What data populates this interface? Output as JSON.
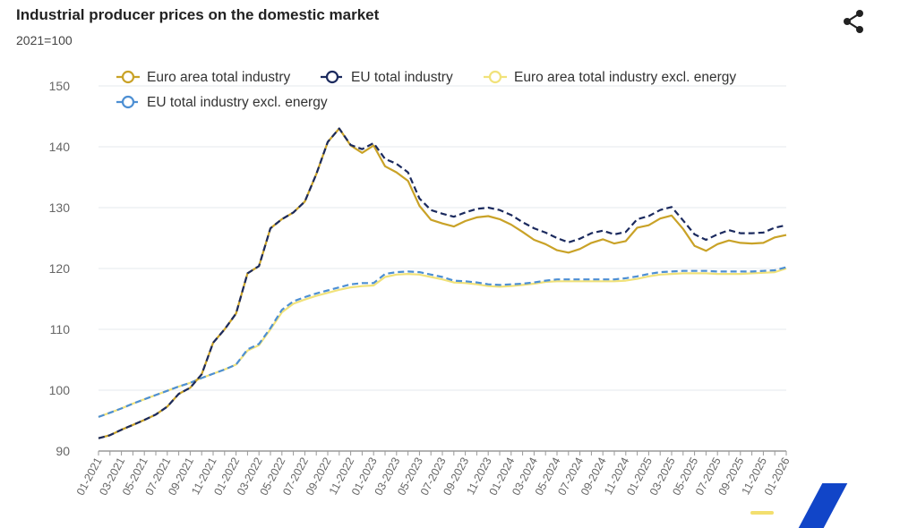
{
  "header": {
    "title": "Industrial producer prices on the domestic market",
    "subtitle": "2021=100",
    "share_icon": "share-icon"
  },
  "colors": {
    "grid": "#e4e8ee",
    "axis": "#999999"
  },
  "chart_data": {
    "type": "line",
    "title": "Industrial producer prices on the domestic market",
    "subtitle": "2021=100",
    "ylim": [
      90,
      150
    ],
    "yticks": [
      90,
      100,
      110,
      120,
      130,
      140,
      150
    ],
    "grid": true,
    "legend_placement": "top",
    "x": [
      "01-2021",
      "02-2021",
      "03-2021",
      "04-2021",
      "05-2021",
      "06-2021",
      "07-2021",
      "08-2021",
      "09-2021",
      "10-2021",
      "11-2021",
      "12-2021",
      "01-2022",
      "02-2022",
      "03-2022",
      "04-2022",
      "05-2022",
      "06-2022",
      "07-2022",
      "08-2022",
      "09-2022",
      "10-2022",
      "11-2022",
      "12-2022",
      "01-2023",
      "02-2023",
      "03-2023",
      "04-2023",
      "05-2023",
      "06-2023",
      "07-2023",
      "08-2023",
      "09-2023",
      "10-2023",
      "11-2023",
      "12-2023",
      "01-2024",
      "02-2024",
      "03-2024",
      "04-2024",
      "05-2024",
      "06-2024",
      "07-2024",
      "08-2024",
      "09-2024",
      "10-2024",
      "11-2024",
      "12-2024",
      "01-2025",
      "02-2025",
      "03-2025",
      "04-2025",
      "05-2025",
      "06-2025",
      "07-2025",
      "08-2025",
      "09-2025",
      "10-2025",
      "11-2025",
      "12-2025",
      "01-2026"
    ],
    "xtick_labels": [
      "01-2021",
      "03-2021",
      "05-2021",
      "07-2021",
      "09-2021",
      "11-2021",
      "01-2022",
      "03-2022",
      "05-2022",
      "07-2022",
      "09-2022",
      "11-2022",
      "01-2023",
      "03-2023",
      "05-2023",
      "07-2023",
      "09-2023",
      "11-2023",
      "01-2024",
      "03-2024",
      "05-2024",
      "07-2024",
      "09-2024",
      "11-2024",
      "01-2025",
      "03-2025",
      "05-2025",
      "07-2025",
      "09-2025",
      "11-2025",
      "01-2026"
    ],
    "series": [
      {
        "name": "Euro area total industry",
        "color": "#c9a227",
        "style": "solid",
        "values": [
          92.1,
          92.6,
          93.5,
          94.3,
          95.1,
          96.0,
          97.3,
          99.4,
          100.4,
          102.6,
          107.8,
          110.0,
          112.6,
          119.2,
          120.4,
          126.6,
          128.1,
          129.2,
          131.0,
          135.5,
          140.8,
          143.0,
          140.2,
          139.0,
          140.2,
          136.8,
          135.8,
          134.4,
          130.3,
          128.0,
          127.4,
          126.9,
          127.8,
          128.4,
          128.6,
          128.1,
          127.2,
          126.0,
          124.7,
          124.0,
          123.0,
          122.6,
          123.2,
          124.2,
          124.8,
          124.1,
          124.5,
          126.7,
          127.1,
          128.2,
          128.7,
          126.5,
          123.7,
          122.9,
          124.0,
          124.6,
          124.2,
          124.1,
          124.2,
          125.1,
          125.5
        ]
      },
      {
        "name": "EU total industry",
        "color": "#1b2a5e",
        "style": "dashed",
        "values": [
          92.1,
          92.6,
          93.5,
          94.3,
          95.1,
          96.0,
          97.3,
          99.4,
          100.4,
          102.6,
          107.8,
          110.0,
          112.6,
          119.2,
          120.4,
          126.6,
          128.1,
          129.2,
          131.0,
          135.5,
          140.8,
          143.0,
          140.3,
          139.6,
          140.6,
          138.0,
          137.2,
          135.8,
          131.5,
          129.6,
          129.0,
          128.5,
          129.2,
          129.8,
          130.0,
          129.6,
          128.8,
          127.6,
          126.6,
          125.9,
          125.0,
          124.3,
          124.9,
          125.8,
          126.2,
          125.6,
          126.0,
          128.1,
          128.6,
          129.6,
          130.1,
          127.9,
          125.6,
          124.7,
          125.6,
          126.3,
          125.8,
          125.8,
          125.9,
          126.7,
          127.1
        ]
      },
      {
        "name": "Euro area total industry excl. energy",
        "color": "#f1e27a",
        "style": "solid",
        "values": [
          95.6,
          96.3,
          97.0,
          97.8,
          98.5,
          99.2,
          99.9,
          100.6,
          101.2,
          102.0,
          102.7,
          103.4,
          104.2,
          106.5,
          107.4,
          110.0,
          112.8,
          114.2,
          114.9,
          115.5,
          116.0,
          116.5,
          116.9,
          117.1,
          117.2,
          118.6,
          119.0,
          119.1,
          119.0,
          118.6,
          118.2,
          117.7,
          117.6,
          117.4,
          117.1,
          117.0,
          117.1,
          117.3,
          117.5,
          117.8,
          117.9,
          117.9,
          117.9,
          117.9,
          117.9,
          117.9,
          118.0,
          118.3,
          118.7,
          119.0,
          119.1,
          119.2,
          119.2,
          119.2,
          119.1,
          119.1,
          119.1,
          119.2,
          119.3,
          119.4,
          120.0
        ]
      },
      {
        "name": "EU total industry excl. energy",
        "color": "#4d8fd3",
        "style": "dashed",
        "values": [
          95.6,
          96.3,
          97.0,
          97.8,
          98.5,
          99.2,
          99.9,
          100.6,
          101.2,
          102.0,
          102.7,
          103.4,
          104.2,
          106.7,
          107.6,
          110.2,
          113.2,
          114.6,
          115.3,
          115.9,
          116.4,
          116.9,
          117.4,
          117.6,
          117.6,
          119.1,
          119.4,
          119.5,
          119.4,
          119.0,
          118.6,
          118.0,
          117.9,
          117.7,
          117.4,
          117.3,
          117.4,
          117.5,
          117.7,
          118.0,
          118.2,
          118.2,
          118.2,
          118.2,
          118.2,
          118.2,
          118.4,
          118.7,
          119.1,
          119.4,
          119.5,
          119.6,
          119.6,
          119.6,
          119.5,
          119.5,
          119.5,
          119.5,
          119.6,
          119.7,
          120.2
        ]
      }
    ]
  }
}
